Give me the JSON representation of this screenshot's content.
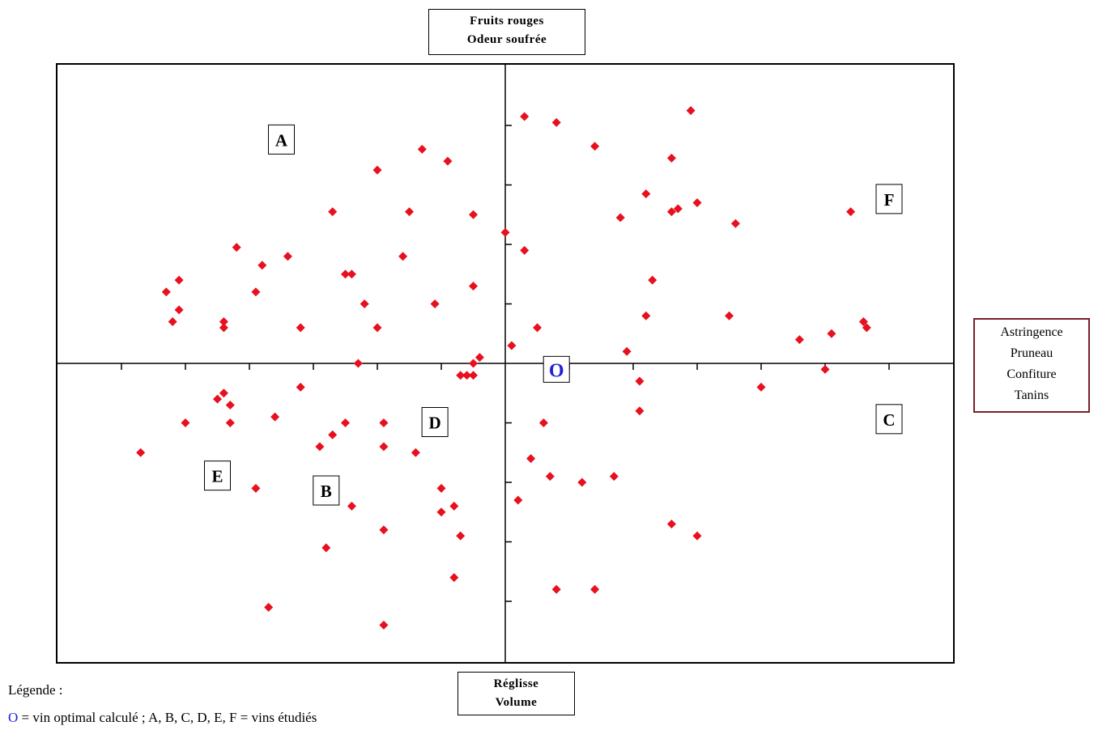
{
  "axis_labels": {
    "top": [
      "Fruits rouges",
      "Odeur soufrée"
    ],
    "bottom": [
      "Réglisse",
      "Volume"
    ],
    "right": [
      "Astringence",
      "Pruneau",
      "Confiture",
      "Tanins"
    ]
  },
  "legend": {
    "title": "Légende :",
    "o_symbol": "O",
    "text": " = vin optimal calculé ;  A, B, C, D, E, F = vins étudiés"
  },
  "colors": {
    "points": "#e8101e",
    "optimal": "#1e20d6",
    "right_box_border": "#7a1f2b"
  },
  "chart_data": {
    "type": "scatter",
    "xlim": [
      -7,
      7
    ],
    "ylim": [
      -5,
      5
    ],
    "grid": false,
    "marker": "diamond",
    "optimal_point": {
      "label": "O",
      "x": 0.8,
      "y": -0.1
    },
    "wine_labels": [
      {
        "label": "A",
        "x": -3.5,
        "y": 3.75
      },
      {
        "label": "B",
        "x": -2.8,
        "y": -2.15
      },
      {
        "label": "C",
        "x": 6.0,
        "y": -0.95
      },
      {
        "label": "D",
        "x": -1.1,
        "y": -1.0
      },
      {
        "label": "E",
        "x": -4.5,
        "y": -1.9
      },
      {
        "label": "F",
        "x": 6.0,
        "y": 2.75
      }
    ],
    "points": [
      [
        0.3,
        4.15
      ],
      [
        0.8,
        4.05
      ],
      [
        1.4,
        3.65
      ],
      [
        2.9,
        4.25
      ],
      [
        2.6,
        3.45
      ],
      [
        2.2,
        2.85
      ],
      [
        2.6,
        2.55
      ],
      [
        2.7,
        2.6
      ],
      [
        3.0,
        2.7
      ],
      [
        1.8,
        2.45
      ],
      [
        3.6,
        2.35
      ],
      [
        5.4,
        2.55
      ],
      [
        0.3,
        1.9
      ],
      [
        2.3,
        1.4
      ],
      [
        2.2,
        0.8
      ],
      [
        3.5,
        0.8
      ],
      [
        0.5,
        0.6
      ],
      [
        0.1,
        0.3
      ],
      [
        1.9,
        0.2
      ],
      [
        4.6,
        0.4
      ],
      [
        5.1,
        0.5
      ],
      [
        5.6,
        0.7
      ],
      [
        5.65,
        0.6
      ],
      [
        5.0,
        -0.1
      ],
      [
        4.0,
        -0.4
      ],
      [
        2.1,
        -0.3
      ],
      [
        2.1,
        -0.8
      ],
      [
        0.6,
        -1.0
      ],
      [
        0.4,
        -1.6
      ],
      [
        0.7,
        -1.9
      ],
      [
        1.2,
        -2.0
      ],
      [
        1.7,
        -1.9
      ],
      [
        0.2,
        -2.3
      ],
      [
        2.6,
        -2.7
      ],
      [
        3.0,
        -2.9
      ],
      [
        0.8,
        -3.8
      ],
      [
        1.4,
        -3.8
      ],
      [
        0.0,
        2.2
      ],
      [
        -0.5,
        2.5
      ],
      [
        -1.3,
        3.6
      ],
      [
        -0.9,
        3.4
      ],
      [
        -2.0,
        3.25
      ],
      [
        -1.5,
        2.55
      ],
      [
        -2.7,
        2.55
      ],
      [
        -0.5,
        1.3
      ],
      [
        -1.6,
        1.8
      ],
      [
        -2.5,
        1.5
      ],
      [
        -2.4,
        1.5
      ],
      [
        -2.2,
        1.0
      ],
      [
        -1.1,
        1.0
      ],
      [
        -2.0,
        0.6
      ],
      [
        -3.4,
        1.8
      ],
      [
        -3.8,
        1.65
      ],
      [
        -3.9,
        1.2
      ],
      [
        -4.2,
        1.95
      ],
      [
        -5.1,
        1.4
      ],
      [
        -5.3,
        1.2
      ],
      [
        -5.1,
        0.9
      ],
      [
        -5.2,
        0.7
      ],
      [
        -4.4,
        0.7
      ],
      [
        -4.4,
        0.6
      ],
      [
        -3.2,
        0.6
      ],
      [
        -2.3,
        0.0
      ],
      [
        -0.5,
        0.0
      ],
      [
        -0.4,
        0.1
      ],
      [
        -0.7,
        -0.2
      ],
      [
        -0.6,
        -0.2
      ],
      [
        -0.5,
        -0.2
      ],
      [
        -3.2,
        -0.4
      ],
      [
        -4.4,
        -0.5
      ],
      [
        -4.5,
        -0.6
      ],
      [
        -4.3,
        -0.7
      ],
      [
        -4.3,
        -1.0
      ],
      [
        -3.6,
        -0.9
      ],
      [
        -5.0,
        -1.0
      ],
      [
        -2.5,
        -1.0
      ],
      [
        -2.7,
        -1.2
      ],
      [
        -2.9,
        -1.4
      ],
      [
        -1.9,
        -1.0
      ],
      [
        -1.9,
        -1.4
      ],
      [
        -1.4,
        -1.5
      ],
      [
        -5.7,
        -1.5
      ],
      [
        -3.9,
        -2.1
      ],
      [
        -1.0,
        -2.1
      ],
      [
        -0.8,
        -2.4
      ],
      [
        -1.0,
        -2.5
      ],
      [
        -0.7,
        -2.9
      ],
      [
        -2.4,
        -2.4
      ],
      [
        -1.9,
        -2.8
      ],
      [
        -2.8,
        -3.1
      ],
      [
        -0.8,
        -3.6
      ],
      [
        -3.7,
        -4.1
      ],
      [
        -1.9,
        -4.4
      ]
    ]
  }
}
